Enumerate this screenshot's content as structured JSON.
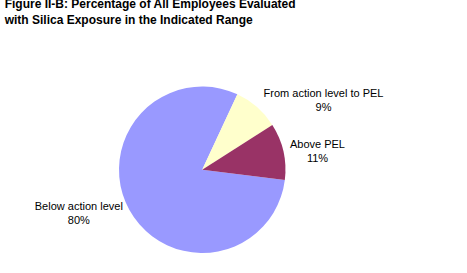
{
  "chart_data": {
    "type": "pie",
    "title": "Figure II-B: Percentage of All Employees Evaluated with Silica Exposure in the Indicated Range",
    "categories": [
      "Below action level",
      "From action level to PEL",
      "Above PEL"
    ],
    "values": [
      80,
      9,
      11
    ],
    "value_labels": [
      "80%",
      "9%",
      "11%"
    ],
    "colors": [
      "#9999ff",
      "#ffffcc",
      "#993366"
    ],
    "data_labels": true
  }
}
